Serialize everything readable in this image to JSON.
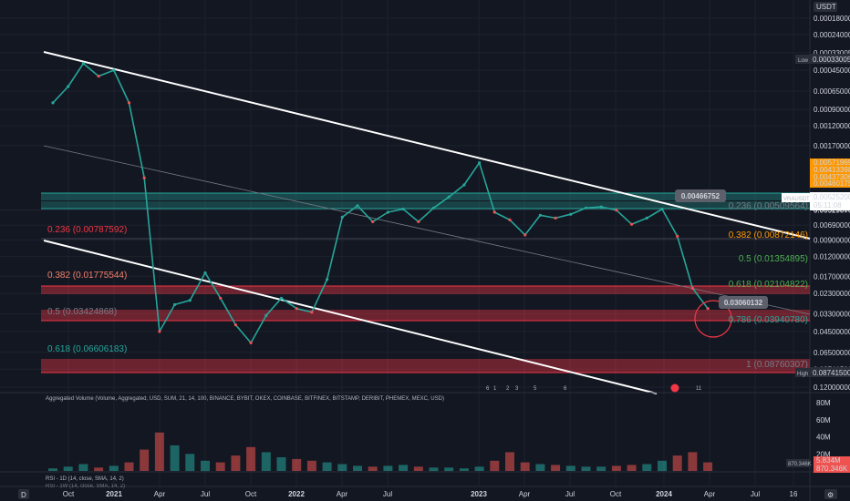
{
  "chart_data": {
    "type": "line",
    "symbol": "VRAUSDT",
    "quote_label": "USDT",
    "scale": "inverted-log",
    "x_ticks": [
      "Oct",
      "2021",
      "Apr",
      "Jul",
      "Oct",
      "2022",
      "Apr",
      "Jul",
      "2023",
      "Apr",
      "Jul",
      "Oct",
      "2024",
      "Apr",
      "Jul",
      "16"
    ],
    "y_ticks": [
      "0.00018000",
      "0.00024000",
      "0.00033005",
      "0.00045000",
      "0.00065000",
      "0.00090000",
      "0.00120000",
      "0.00170000",
      "0.00525200",
      "0.00529670",
      "0.00690000",
      "0.00900000",
      "0.01200000",
      "0.01700000",
      "0.02300000",
      "0.03300000",
      "0.04500000",
      "0.06500000",
      "0.08741500",
      "0.12000000"
    ],
    "y_range": [
      0.00018,
      0.12
    ],
    "low_label": "Low",
    "low_value": "0.00033005",
    "high_label": "High",
    "high_value": "0.08741500",
    "last_price_label": "VRAUSDT",
    "last_price": "0.00525200",
    "countdown": "05:11:08",
    "price_stack": [
      "0.00571969",
      "0.00413398",
      "0.00437306",
      "0.00460175"
    ],
    "callout_top": "0.00466752",
    "callout_bottom": "0.03060132",
    "fib_levels": [
      {
        "text": "0.236 (0.00787592)",
        "color": "#f23645"
      },
      {
        "text": "0.382 (0.01775544)",
        "color": "#f57f6a"
      },
      {
        "text": "0.5 (0.03424868)",
        "color": "#787b86"
      },
      {
        "text": "0.618 (0.06606183)",
        "color": "#26a69a"
      },
      {
        "text": "0.236 (0.00509564)",
        "color": "#787b86"
      },
      {
        "text": "0.382 (0.00872146)",
        "color": "#ff9800"
      },
      {
        "text": "0.5 (0.01354895)",
        "color": "#4caf50"
      },
      {
        "text": "0.618 (0.02104822)",
        "color": "#4caf50"
      },
      {
        "text": "0.786 (0.03940780)",
        "color": "#26a69a"
      },
      {
        "text": "1 (0.08760307)",
        "color": "#787b86"
      }
    ],
    "series": [
      {
        "name": "VRAUSDT",
        "color": "#26a69a",
        "x": [
          "2020-09",
          "2020-10",
          "2020-11",
          "2020-12",
          "2021-01",
          "2021-02",
          "2021-03",
          "2021-04",
          "2021-05",
          "2021-06",
          "2021-07",
          "2021-08",
          "2021-09",
          "2021-10",
          "2021-11",
          "2021-12",
          "2022-01",
          "2022-02",
          "2022-03",
          "2022-04",
          "2022-05",
          "2022-06",
          "2022-07",
          "2022-08",
          "2022-09",
          "2022-10",
          "2022-11",
          "2022-12",
          "2023-01",
          "2023-02",
          "2023-03",
          "2023-04",
          "2023-05",
          "2023-06",
          "2023-07",
          "2023-08",
          "2023-09",
          "2023-10",
          "2023-11",
          "2023-12",
          "2024-01",
          "2024-02",
          "2024-03",
          "2024-04"
        ],
        "values": [
          0.0008,
          0.0006,
          0.0004,
          0.0005,
          0.00045,
          0.0008,
          0.003,
          0.045,
          0.028,
          0.026,
          0.016,
          0.025,
          0.04,
          0.055,
          0.034,
          0.025,
          0.03,
          0.032,
          0.018,
          0.006,
          0.0049,
          0.0065,
          0.0055,
          0.0052,
          0.0065,
          0.0051,
          0.0042,
          0.0034,
          0.0023,
          0.0055,
          0.0063,
          0.0082,
          0.0058,
          0.0061,
          0.0057,
          0.0051,
          0.005,
          0.0053,
          0.0068,
          0.0061,
          0.0052,
          0.0084,
          0.021,
          0.03
        ]
      }
    ]
  },
  "volume_panel": {
    "title": "Aggregated Volume (Volume, Aggregated, USD, SUM, 21, 14, 100, BINANCE, BYBIT, OKEX, COINBASE, BITFINEX, BITSTAMP, DERIBIT, PHEMEX, MEXC, USD)",
    "scale": [
      "80M",
      "60M",
      "40M",
      "20M"
    ],
    "value1": "5.834M",
    "value2": "870.346K",
    "value3": "870.346K",
    "values_m": [
      3,
      5,
      8,
      4,
      6,
      10,
      25,
      45,
      30,
      20,
      12,
      10,
      18,
      28,
      22,
      16,
      14,
      12,
      10,
      8,
      6,
      5,
      6,
      7,
      5,
      4,
      4,
      3,
      5,
      12,
      22,
      10,
      8,
      7,
      6,
      5,
      5,
      6,
      7,
      8,
      12,
      18,
      22,
      10
    ]
  },
  "rsi_panel": {
    "title": "RSI - 1D (14, close, SMA, 14, 2)",
    "title2": "RSI - 1W (14, close, SMA, 14, 2)"
  },
  "event_markers": [
    "6",
    "1",
    "2",
    "3",
    "5",
    "6",
    "11"
  ],
  "time_badge": "D"
}
